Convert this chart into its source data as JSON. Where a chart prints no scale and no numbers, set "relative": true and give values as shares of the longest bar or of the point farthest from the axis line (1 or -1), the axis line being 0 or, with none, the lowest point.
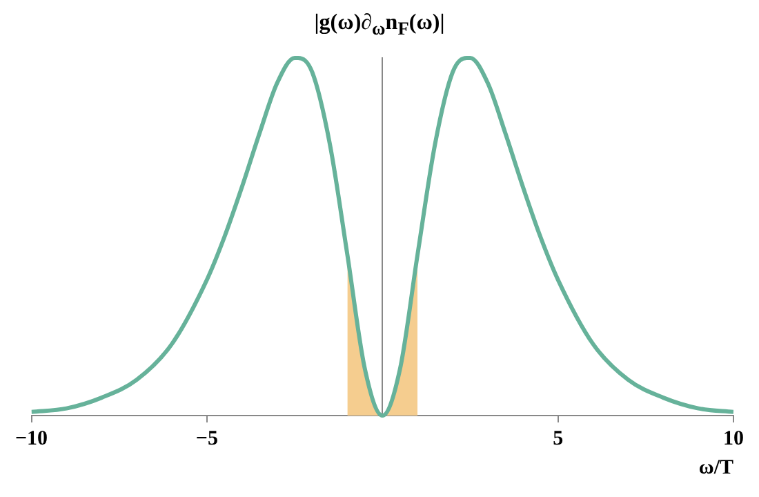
{
  "chart_data": {
    "type": "line",
    "title": "|g(ω)∂$_{ω}$n$_{F}$(ω)|",
    "xlabel": "ω/T",
    "relative": true,
    "xlim": [
      -10,
      10
    ],
    "xticks": [
      -10,
      -5,
      5,
      10
    ],
    "grid": false,
    "marker": "none",
    "series": [
      {
        "type": "area",
        "color": "#f5cd8f",
        "x": [
          -1,
          -0.75,
          -0.5,
          -0.25,
          0,
          0.25,
          0.5,
          0.75,
          1
        ],
        "values": [
          0.45,
          0.28,
          0.13,
          0.04,
          0,
          0.04,
          0.13,
          0.28,
          0.45
        ]
      },
      {
        "color": "#66b29a",
        "x": [
          -10,
          -9,
          -8,
          -7,
          -6,
          -5,
          -4.5,
          -4,
          -3.5,
          -3,
          -2.5,
          -2.4,
          -2,
          -1.5,
          -1,
          -0.5,
          0,
          0.5,
          1,
          1.5,
          2,
          2.4,
          2.5,
          3,
          3.5,
          4,
          4.5,
          5,
          6,
          7,
          8,
          9,
          10
        ],
        "values": [
          0.01,
          0.02,
          0.05,
          0.1,
          0.2,
          0.38,
          0.5,
          0.64,
          0.79,
          0.93,
          1,
          1,
          0.96,
          0.76,
          0.45,
          0.13,
          0,
          0.13,
          0.45,
          0.76,
          0.96,
          1,
          1,
          0.93,
          0.79,
          0.64,
          0.5,
          0.38,
          0.2,
          0.1,
          0.05,
          0.02,
          0.01
        ]
      }
    ]
  }
}
